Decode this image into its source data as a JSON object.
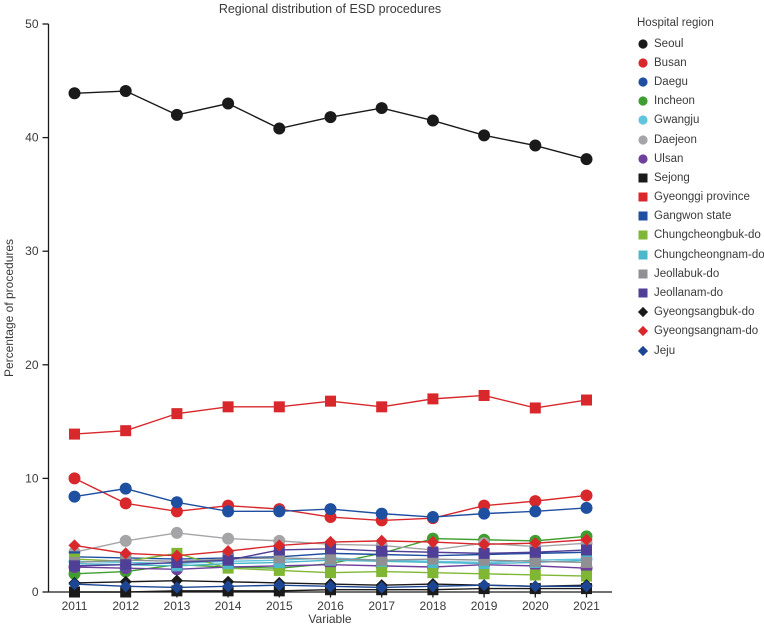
{
  "chart_data": {
    "type": "line",
    "title": "Regional distribution of ESD procedures",
    "xlabel": "Variable",
    "ylabel": "Percentage of procedures",
    "x": [
      2011,
      2012,
      2013,
      2014,
      2015,
      2016,
      2017,
      2018,
      2019,
      2020,
      2021
    ],
    "ylim": [
      0,
      50
    ],
    "yticks": [
      0,
      10,
      20,
      30,
      40,
      50
    ],
    "grid": false,
    "legend": {
      "title": "Hospital region",
      "position": "right"
    },
    "series": [
      {
        "name": "Seoul",
        "marker": "circle",
        "color": "#1a1a1a",
        "values": [
          43.9,
          44.1,
          42.0,
          43.0,
          40.8,
          41.8,
          42.6,
          41.5,
          40.2,
          39.3,
          38.1
        ]
      },
      {
        "name": "Busan",
        "marker": "circle",
        "color": "#d8282c",
        "values": [
          10.0,
          7.8,
          7.1,
          7.6,
          7.3,
          6.6,
          6.3,
          6.5,
          7.6,
          8.0,
          8.5
        ]
      },
      {
        "name": "Daegu",
        "marker": "circle",
        "color": "#1f4fa0",
        "values": [
          8.4,
          9.1,
          7.9,
          7.1,
          7.1,
          7.3,
          6.9,
          6.6,
          6.9,
          7.1,
          7.4
        ]
      },
      {
        "name": "Incheon",
        "marker": "circle",
        "color": "#3f9e2f",
        "values": [
          1.6,
          1.8,
          2.4,
          2.2,
          2.1,
          2.5,
          3.4,
          4.7,
          4.6,
          4.5,
          4.9
        ]
      },
      {
        "name": "Gwangju",
        "marker": "circle",
        "color": "#5fc4dd",
        "values": [
          2.7,
          2.6,
          2.5,
          2.7,
          2.8,
          3.0,
          2.8,
          2.7,
          2.6,
          2.8,
          2.9
        ]
      },
      {
        "name": "Daejeon",
        "marker": "circle",
        "color": "#a5a5a8",
        "values": [
          3.5,
          4.5,
          5.2,
          4.7,
          4.5,
          4.2,
          4.1,
          3.7,
          4.3,
          4.0,
          4.3
        ]
      },
      {
        "name": "Ulsan",
        "marker": "circle",
        "color": "#6f3f9e",
        "values": [
          2.2,
          2.1,
          2.0,
          2.2,
          2.3,
          2.4,
          2.3,
          2.2,
          2.4,
          2.3,
          2.1
        ]
      },
      {
        "name": "Sejong",
        "marker": "square",
        "color": "#1a1a1a",
        "values": [
          0.0,
          0.0,
          0.1,
          0.1,
          0.1,
          0.2,
          0.2,
          0.2,
          0.3,
          0.3,
          0.3
        ]
      },
      {
        "name": "Gyeonggi province",
        "marker": "square",
        "color": "#d8282c",
        "values": [
          13.9,
          14.2,
          15.7,
          16.3,
          16.3,
          16.8,
          16.3,
          17.0,
          17.3,
          16.2,
          16.9
        ]
      },
      {
        "name": "Gangwon state",
        "marker": "square",
        "color": "#1f4fa0",
        "values": [
          3.1,
          3.0,
          2.9,
          3.0,
          3.1,
          3.4,
          3.3,
          3.2,
          3.3,
          3.4,
          3.5
        ]
      },
      {
        "name": "Chungcheongbuk-do",
        "marker": "square",
        "color": "#7fb734",
        "values": [
          2.9,
          2.7,
          3.4,
          2.1,
          1.9,
          1.7,
          1.8,
          1.7,
          1.6,
          1.5,
          1.4
        ]
      },
      {
        "name": "Chungcheongnam-do",
        "marker": "square",
        "color": "#4db8cc",
        "values": [
          2.5,
          2.4,
          2.3,
          2.5,
          2.6,
          2.8,
          2.7,
          2.6,
          2.5,
          2.6,
          2.8
        ]
      },
      {
        "name": "Jeollabuk-do",
        "marker": "square",
        "color": "#8f8f94",
        "values": [
          2.6,
          2.8,
          2.7,
          2.9,
          3.0,
          2.9,
          2.8,
          2.9,
          2.8,
          2.7,
          2.6
        ]
      },
      {
        "name": "Jeollanam-do",
        "marker": "square",
        "color": "#4f3f96",
        "values": [
          2.3,
          2.4,
          2.6,
          2.8,
          3.7,
          3.8,
          3.6,
          3.5,
          3.4,
          3.5,
          3.7
        ]
      },
      {
        "name": "Gyeongsangbuk-do",
        "marker": "diamond",
        "color": "#1a1a1a",
        "values": [
          0.8,
          0.9,
          1.0,
          0.9,
          0.8,
          0.7,
          0.6,
          0.7,
          0.6,
          0.5,
          0.6
        ]
      },
      {
        "name": "Gyeongsangnam-do",
        "marker": "diamond",
        "color": "#d8282c",
        "values": [
          4.1,
          3.4,
          3.2,
          3.6,
          4.1,
          4.4,
          4.5,
          4.4,
          4.2,
          4.3,
          4.6
        ]
      },
      {
        "name": "Jeju",
        "marker": "diamond",
        "color": "#1c4693",
        "values": [
          0.7,
          0.5,
          0.4,
          0.5,
          0.6,
          0.5,
          0.4,
          0.5,
          0.6,
          0.5,
          0.5
        ]
      }
    ]
  }
}
